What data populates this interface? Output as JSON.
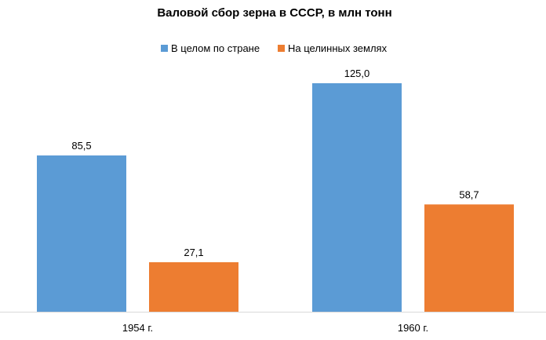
{
  "chart_data": {
    "type": "bar",
    "title": "Валовой сбор зерна в СССР, в млн тонн",
    "categories": [
      "1954 г.",
      "1960 г."
    ],
    "series": [
      {
        "name": "В целом по стране",
        "values": [
          85.5,
          125.0
        ],
        "labels": [
          "85,5",
          "125,0"
        ],
        "color": "#5B9BD5"
      },
      {
        "name": "На целинных землях",
        "values": [
          27.1,
          58.7
        ],
        "labels": [
          "27,1",
          "58,7"
        ],
        "color": "#ED7D31"
      }
    ],
    "ylim": [
      0,
      140
    ],
    "grid": false,
    "legend_position": "top"
  }
}
